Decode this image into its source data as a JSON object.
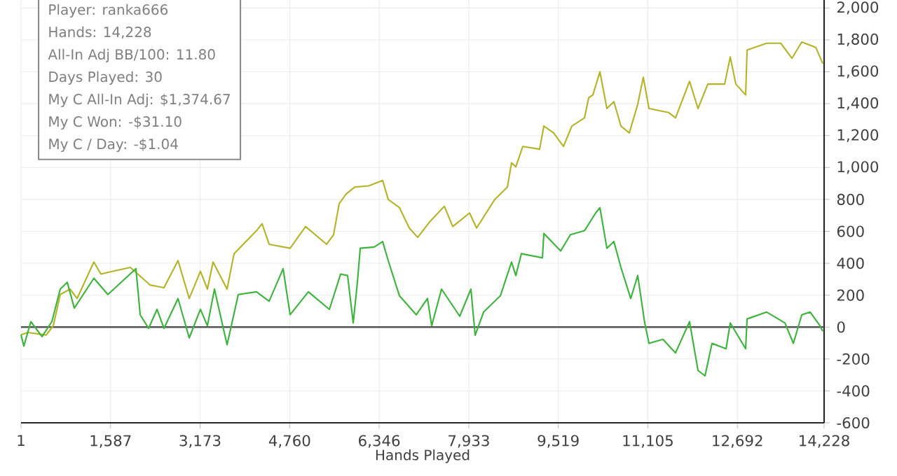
{
  "chart_data": {
    "type": "line",
    "xlabel": "Hands Played",
    "annotations": [
      "Player: ranka666",
      "Hands: 14,228",
      "All-In Adj BB/100: 11.80",
      "Days Played: 30",
      "My C All-In Adj: $1,374.67",
      "My C Won: -$31.10",
      "My C / Day: -$1.04"
    ],
    "series": [
      {
        "color": "#b4b42a",
        "x": [
          1,
          125,
          448,
          572,
          696,
          870,
          994,
          1292,
          1416,
          1615,
          1938,
          2285,
          2534,
          2782,
          2981,
          3179,
          3303,
          3403,
          3651,
          3775,
          4172,
          4272,
          4396,
          4768,
          5042,
          5414,
          5538,
          5637,
          5761,
          5910,
          6159,
          6407,
          6506,
          6705,
          6879,
          7028,
          7251,
          7500,
          7649,
          7947,
          8071,
          8394,
          8617,
          8691,
          8766,
          8890,
          9188,
          9263,
          9436,
          9610,
          9759,
          9983,
          10057,
          10132,
          10256,
          10380,
          10504,
          10628,
          10777,
          10926,
          11025,
          11125,
          11472,
          11596,
          11844,
          11994,
          12168,
          12466,
          12565,
          12664,
          12838,
          12863,
          13211,
          13459,
          13658,
          13832,
          14080,
          14204
        ],
        "values": [
          -48,
          -34,
          -50,
          8,
          204,
          238,
          179,
          408,
          332,
          349,
          374,
          264,
          247,
          417,
          179,
          349,
          238,
          408,
          238,
          460,
          604,
          647,
          519,
          494,
          630,
          519,
          579,
          774,
          834,
          877,
          885,
          919,
          800,
          749,
          621,
          562,
          664,
          757,
          630,
          715,
          621,
          800,
          877,
          1030,
          1004,
          1132,
          1115,
          1260,
          1217,
          1132,
          1260,
          1311,
          1438,
          1455,
          1600,
          1370,
          1413,
          1260,
          1217,
          1396,
          1566,
          1370,
          1345,
          1311,
          1540,
          1370,
          1523,
          1523,
          1693,
          1523,
          1455,
          1736,
          1779,
          1779,
          1685,
          1787,
          1753,
          1651
        ]
      },
      {
        "color": "#3cb43c",
        "x": [
          1,
          51,
          175,
          373,
          547,
          696,
          820,
          945,
          1292,
          1540,
          2037,
          2112,
          2261,
          2410,
          2534,
          2782,
          2981,
          3179,
          3303,
          3428,
          3651,
          3850,
          4172,
          4396,
          4644,
          4768,
          5091,
          5464,
          5662,
          5786,
          5886,
          5960,
          6010,
          6258,
          6407,
          6506,
          6705,
          7003,
          7202,
          7276,
          7450,
          7773,
          7971,
          8046,
          8195,
          8493,
          8691,
          8766,
          8865,
          9238,
          9263,
          9561,
          9734,
          9983,
          10181,
          10256,
          10380,
          10504,
          10628,
          10802,
          10926,
          11050,
          11125,
          11373,
          11596,
          11844,
          11994,
          12118,
          12242,
          12491,
          12565,
          12838,
          12863,
          13211,
          13534,
          13683,
          13832,
          13981,
          14155,
          14204
        ],
        "values": [
          -48,
          -119,
          34,
          -60,
          34,
          238,
          281,
          119,
          306,
          204,
          366,
          77,
          -8,
          111,
          -8,
          179,
          -68,
          111,
          8,
          238,
          -111,
          204,
          221,
          162,
          366,
          77,
          221,
          111,
          332,
          323,
          26,
          281,
          494,
          502,
          536,
          417,
          196,
          77,
          179,
          8,
          238,
          68,
          238,
          -51,
          94,
          196,
          408,
          323,
          460,
          434,
          587,
          477,
          579,
          604,
          715,
          749,
          494,
          536,
          374,
          179,
          323,
          26,
          -102,
          -77,
          -162,
          34,
          -272,
          -306,
          -102,
          -136,
          26,
          -136,
          51,
          94,
          26,
          -102,
          77,
          94,
          8,
          -26
        ]
      }
    ],
    "xlim": [
      1,
      14228
    ],
    "xticks": [
      1,
      {
        "value": 1587,
        "label": "1,587"
      },
      {
        "value": 3173,
        "label": "3,173"
      },
      {
        "value": 4760,
        "label": "4,760"
      },
      {
        "value": 6346,
        "label": "6,346"
      },
      {
        "value": 7933,
        "label": "7,933"
      },
      {
        "value": 9519,
        "label": "9,519"
      },
      {
        "value": 11105,
        "label": "11,105"
      },
      {
        "value": 12692,
        "label": "12,692"
      },
      {
        "value": 14228,
        "label": "14,228"
      }
    ],
    "ylim": [
      -600,
      2050
    ],
    "yticks": [
      -600,
      -400,
      -200,
      0,
      200,
      400,
      600,
      800,
      {
        "value": 1000,
        "label": "1,000"
      },
      {
        "value": 1200,
        "label": "1,200"
      },
      {
        "value": 1400,
        "label": "1,400"
      },
      {
        "value": 1600,
        "label": "1,600"
      },
      {
        "value": 1800,
        "label": "1,800"
      },
      {
        "value": 2000,
        "label": "2,000"
      }
    ],
    "ref_lines": [
      {
        "axis": "y",
        "value": 0,
        "color": "#555555"
      }
    ],
    "grid": true,
    "marker": "none",
    "line_style": "solid"
  }
}
